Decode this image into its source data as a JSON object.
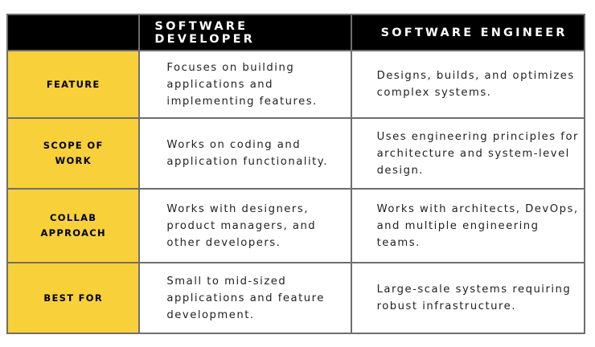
{
  "header": {
    "corner": "",
    "col1": "SOFTWARE DEVELOPER",
    "col2": "SOFTWARE ENGINEER"
  },
  "rows": [
    {
      "label": "FEATURE",
      "developer": "Focuses on building applications and implementing features.",
      "engineer": "Designs, builds, and optimizes complex systems."
    },
    {
      "label": "SCOPE OF WORK",
      "developer": "Works on coding and application functionality.",
      "engineer": "Uses engineering principles for architecture and system-level design."
    },
    {
      "label": "COLLAB APPROACH",
      "developer": "Works with designers, product managers, and other developers.",
      "engineer": "Works with architects, DevOps, and multiple engineering teams."
    },
    {
      "label": "BEST FOR",
      "developer": "Small to mid-sized applications and feature development.",
      "engineer": "Large-scale systems requiring robust infrastructure."
    }
  ],
  "colors": {
    "header_bg": "#000000",
    "label_bg": "#f8d03a",
    "border": "#6e6e6e"
  }
}
